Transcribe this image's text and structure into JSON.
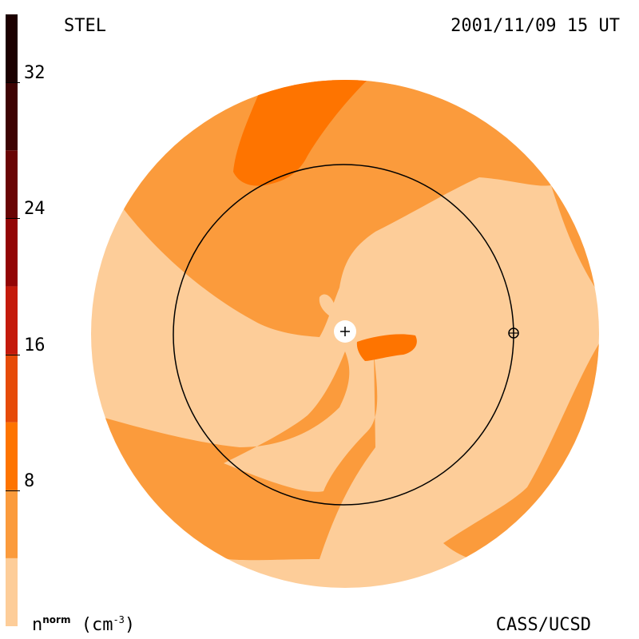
{
  "header": {
    "source": "STEL",
    "timestamp": "2001/11/09 15 UT"
  },
  "footer": {
    "unit_base": "n",
    "unit_super": "norm",
    "unit_rest": " (cm",
    "unit_exp": "-3",
    "unit_close": ")",
    "credit": "CASS/UCSD"
  },
  "chart_data": {
    "type": "heatmap",
    "title": "",
    "colorbar": {
      "ticks": [
        "8",
        "16",
        "24",
        "32"
      ],
      "tick_values": [
        8,
        16,
        24,
        32
      ],
      "range": [
        0,
        36
      ],
      "levels": [
        {
          "from": 0,
          "to": 4,
          "color": "#fdcd99"
        },
        {
          "from": 4,
          "to": 8,
          "color": "#fb9b3c"
        },
        {
          "from": 8,
          "to": 12,
          "color": "#fe7400"
        },
        {
          "from": 12,
          "to": 16,
          "color": "#e64b08"
        },
        {
          "from": 16,
          "to": 20,
          "color": "#c41a0b"
        },
        {
          "from": 20,
          "to": 24,
          "color": "#930505"
        },
        {
          "from": 24,
          "to": 28,
          "color": "#6a0505"
        },
        {
          "from": 28,
          "to": 32,
          "color": "#3e0303"
        },
        {
          "from": 32,
          "to": 36,
          "color": "#1c0000"
        }
      ]
    },
    "markers": [
      {
        "name": "sun-marker",
        "symbol": "+"
      },
      {
        "name": "earth-marker",
        "symbol": "⊕"
      }
    ],
    "reference_circle": "1 AU orbit"
  }
}
